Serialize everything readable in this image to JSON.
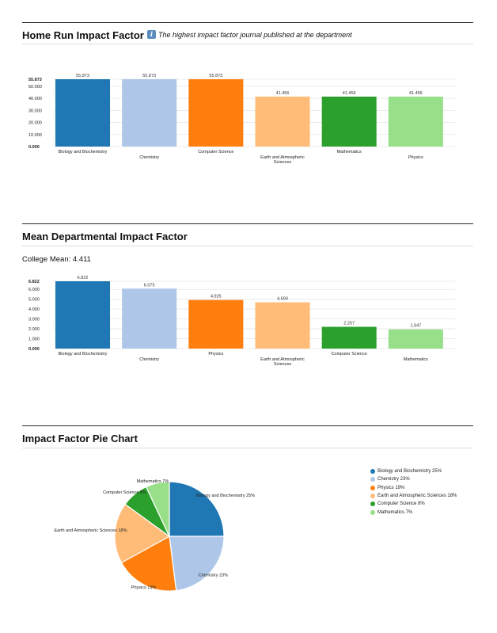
{
  "sections": {
    "home_run": {
      "title": "Home Run Impact Factor",
      "info_icon": "i",
      "subtitle": "The highest impact factor journal published at the department"
    },
    "mean": {
      "title": "Mean Departmental Impact Factor",
      "college_mean": "College Mean: 4.411"
    },
    "pie": {
      "title": "Impact Factor Pie Chart"
    }
  },
  "chart_data": [
    {
      "type": "bar",
      "categories": [
        "Biology and Biochemistry",
        "Chemistry",
        "Computer Science",
        "Earth and Atmospheric Sciences",
        "Mathematics",
        "Physics"
      ],
      "values": [
        55.873,
        55.873,
        55.873,
        41.456,
        41.456,
        41.456
      ],
      "value_labels": [
        "55.873",
        "55.873",
        "55.873",
        "41.456",
        "41.456",
        "41.456"
      ],
      "colors": [
        "#1f77b4",
        "#aec7e8",
        "#ff7f0e",
        "#ffbb78",
        "#2ca02c",
        "#98df8a"
      ],
      "yticks": [
        "0.000",
        "10.000",
        "20.000",
        "30.000",
        "40.000",
        "50.000",
        "55.873"
      ],
      "ytick_values": [
        0,
        10,
        20,
        30,
        40,
        50,
        55.873
      ],
      "ylim": [
        0,
        55.873
      ],
      "grid": true
    },
    {
      "type": "bar",
      "categories": [
        "Biology and Biochemistry",
        "Chemistry",
        "Physics",
        "Earth and Atmospheric Sciences",
        "Computer Science",
        "Mathematics"
      ],
      "values": [
        6.822,
        6.075,
        4.925,
        4.69,
        2.207,
        1.947
      ],
      "value_labels": [
        "6.822",
        "6.075",
        "4.925",
        "4.690",
        "2.207",
        "1.947"
      ],
      "colors": [
        "#1f77b4",
        "#aec7e8",
        "#ff7f0e",
        "#ffbb78",
        "#2ca02c",
        "#98df8a"
      ],
      "yticks": [
        "0.000",
        "1.000",
        "2.000",
        "3.000",
        "4.000",
        "5.000",
        "6.000",
        "6.822"
      ],
      "ytick_values": [
        0,
        1,
        2,
        3,
        4,
        5,
        6,
        6.822
      ],
      "ylim": [
        0,
        6.822
      ],
      "grid": true
    },
    {
      "type": "pie",
      "slices": [
        {
          "name": "Biology and Biochemistry",
          "percent": 25,
          "label": "Biology and Biochemistry 25%",
          "color": "#1f77b4"
        },
        {
          "name": "Chemistry",
          "percent": 23,
          "label": "Chemistry 23%",
          "color": "#aec7e8"
        },
        {
          "name": "Physics",
          "percent": 19,
          "label": "Physics 19%",
          "color": "#ff7f0e"
        },
        {
          "name": "Earth and Atmospheric Sciences",
          "percent": 18,
          "label": "Earth and Atmospheric Sciences 18%",
          "color": "#ffbb78"
        },
        {
          "name": "Computer Science",
          "percent": 8,
          "label": "Computer Science 8%",
          "color": "#2ca02c"
        },
        {
          "name": "Mathematics",
          "percent": 7,
          "label": "Mathematics 7%",
          "color": "#98df8a"
        }
      ],
      "legend_placement": "right"
    }
  ]
}
